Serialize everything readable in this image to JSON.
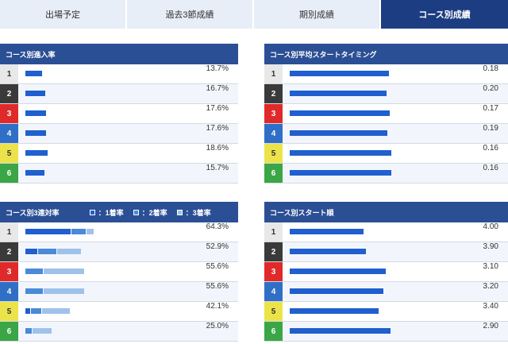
{
  "tabs": [
    {
      "label": "出場予定",
      "active": false
    },
    {
      "label": "過去3節成績",
      "active": false
    },
    {
      "label": "期別成績",
      "active": false
    },
    {
      "label": "コース別成績",
      "active": true
    }
  ],
  "colors": {
    "header": "#2b4f95",
    "active_tab": "#1c3d82",
    "bar_dark": "#1f5fcf",
    "bar_mid": "#4a8ad6",
    "bar_light": "#9fc2ea"
  },
  "panels": {
    "entry_rate": {
      "title": "コース別進入率",
      "rows": [
        {
          "lane": "1",
          "value": "13.7%",
          "pct": 13.7
        },
        {
          "lane": "2",
          "value": "16.7%",
          "pct": 16.7
        },
        {
          "lane": "3",
          "value": "17.6%",
          "pct": 17.6
        },
        {
          "lane": "4",
          "value": "17.6%",
          "pct": 17.6
        },
        {
          "lane": "5",
          "value": "18.6%",
          "pct": 18.6
        },
        {
          "lane": "6",
          "value": "15.7%",
          "pct": 15.7
        }
      ]
    },
    "start_timing": {
      "title": "コース別平均スタートタイミング",
      "rows": [
        {
          "lane": "1",
          "value": "0.18",
          "num": 0.18
        },
        {
          "lane": "2",
          "value": "0.20",
          "num": 0.2
        },
        {
          "lane": "3",
          "value": "0.17",
          "num": 0.17
        },
        {
          "lane": "4",
          "value": "0.19",
          "num": 0.19
        },
        {
          "lane": "5",
          "value": "0.16",
          "num": 0.16
        },
        {
          "lane": "6",
          "value": "0.16",
          "num": 0.16
        }
      ]
    },
    "top3_rate": {
      "title": "コース別3連対率",
      "legend": [
        "：1着率",
        "：2着率",
        "：3着率"
      ],
      "rows": [
        {
          "lane": "1",
          "value": "64.3%",
          "parts": [
            42.9,
            14.3,
            7.1
          ]
        },
        {
          "lane": "2",
          "value": "52.9%",
          "parts": [
            11.8,
            17.6,
            23.5
          ]
        },
        {
          "lane": "3",
          "value": "55.6%",
          "parts": [
            0,
            16.7,
            38.9
          ]
        },
        {
          "lane": "4",
          "value": "55.6%",
          "parts": [
            0,
            16.7,
            38.9
          ]
        },
        {
          "lane": "5",
          "value": "42.1%",
          "parts": [
            5.3,
            10.5,
            26.3
          ]
        },
        {
          "lane": "6",
          "value": "25.0%",
          "parts": [
            0,
            6.3,
            18.7
          ]
        }
      ]
    },
    "start_rank": {
      "title": "コース別スタート順",
      "rows": [
        {
          "lane": "1",
          "value": "4.00",
          "num": 4.0
        },
        {
          "lane": "2",
          "value": "3.90",
          "num": 3.9
        },
        {
          "lane": "3",
          "value": "3.10",
          "num": 3.1
        },
        {
          "lane": "4",
          "value": "3.20",
          "num": 3.2
        },
        {
          "lane": "5",
          "value": "3.40",
          "num": 3.4
        },
        {
          "lane": "6",
          "value": "2.90",
          "num": 2.9
        }
      ]
    }
  }
}
